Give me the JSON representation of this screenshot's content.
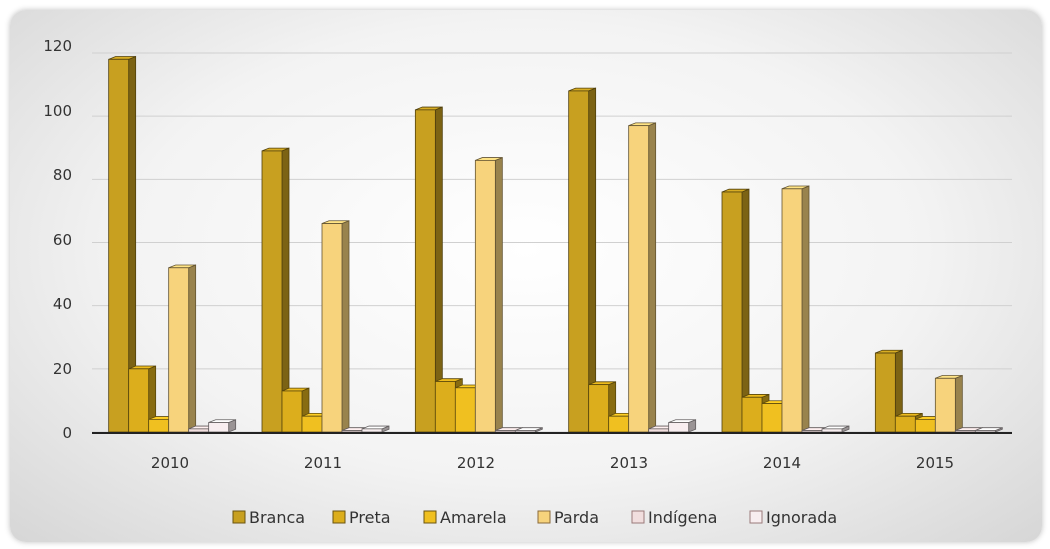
{
  "chart_data": {
    "type": "bar",
    "categories": [
      "2010",
      "2011",
      "2012",
      "2013",
      "2014",
      "2015"
    ],
    "series": [
      {
        "name": "Branca",
        "values": [
          118,
          89,
          102,
          108,
          76,
          25
        ],
        "color": "#c8a020"
      },
      {
        "name": "Preta",
        "values": [
          20,
          13,
          16,
          15,
          11,
          5
        ],
        "color": "#dcae1c"
      },
      {
        "name": "Amarela",
        "values": [
          4,
          5,
          14,
          5,
          9,
          4
        ],
        "color": "#f0c020"
      },
      {
        "name": "Parda",
        "values": [
          52,
          66,
          86,
          97,
          77,
          17
        ],
        "color": "#f7d37c"
      },
      {
        "name": "Indígena",
        "values": [
          1,
          0,
          0,
          1,
          0,
          0
        ],
        "color": "#f1dede"
      },
      {
        "name": "Ignorada",
        "values": [
          3,
          1,
          0,
          3,
          1,
          0
        ],
        "color": "#f8eef0"
      }
    ],
    "yticks": [
      "0",
      "20",
      "40",
      "60",
      "80",
      "100",
      "120"
    ],
    "ylim": [
      0,
      120
    ],
    "grid": true,
    "legend_position": "bottom"
  }
}
